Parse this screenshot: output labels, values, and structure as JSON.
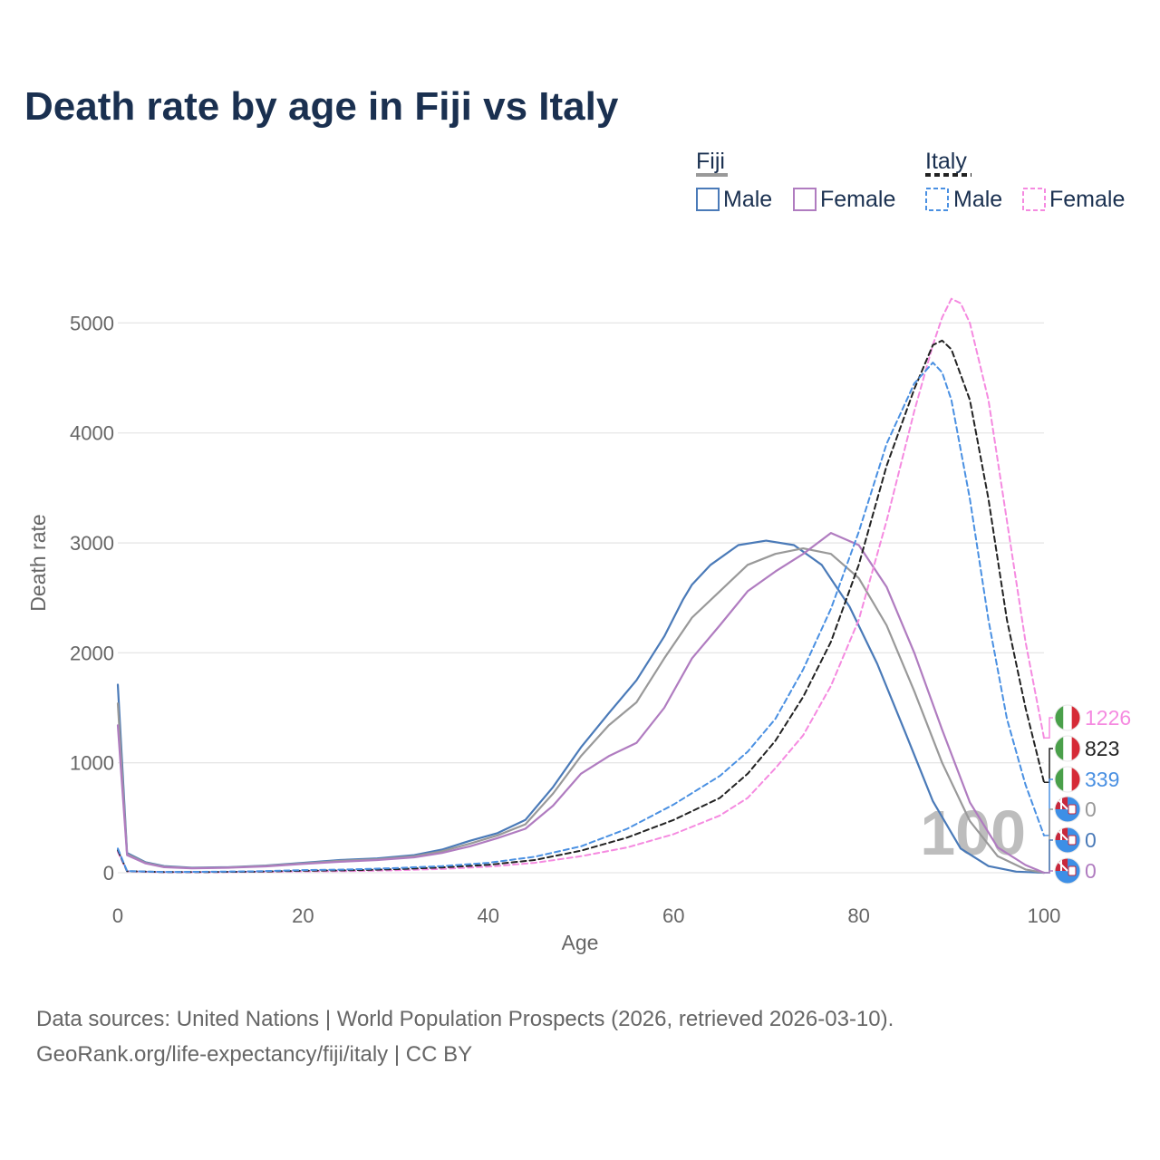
{
  "chart_data": {
    "type": "line",
    "title": "Death rate by age in Fiji vs Italy",
    "xlabel": "Age",
    "ylabel": "Death rate",
    "xlim": [
      0,
      100
    ],
    "ylim": [
      0,
      5300
    ],
    "x_ticks": [
      0,
      20,
      40,
      60,
      80,
      100
    ],
    "y_ticks": [
      0,
      1000,
      2000,
      3000,
      4000,
      5000
    ],
    "current_year_label": "100",
    "legend": {
      "groups": [
        {
          "name": "Fiji",
          "items": [
            {
              "label": "Male",
              "style": "solid",
              "color": "#4a7ab8"
            },
            {
              "label": "Female",
              "style": "solid",
              "color": "#b07cc0"
            }
          ]
        },
        {
          "name": "Italy",
          "items": [
            {
              "label": "Male",
              "style": "dashed",
              "color": "#4a90e2"
            },
            {
              "label": "Female",
              "style": "dashed",
              "color": "#f58ae0"
            }
          ]
        }
      ]
    },
    "series": [
      {
        "name": "Fiji Male",
        "color": "#4a7ab8",
        "dash": false,
        "points": [
          [
            0,
            1710
          ],
          [
            1,
            180
          ],
          [
            3,
            95
          ],
          [
            5,
            60
          ],
          [
            8,
            45
          ],
          [
            12,
            50
          ],
          [
            16,
            65
          ],
          [
            20,
            90
          ],
          [
            24,
            115
          ],
          [
            28,
            130
          ],
          [
            32,
            160
          ],
          [
            35,
            210
          ],
          [
            38,
            290
          ],
          [
            41,
            360
          ],
          [
            44,
            480
          ],
          [
            47,
            780
          ],
          [
            50,
            1140
          ],
          [
            53,
            1450
          ],
          [
            56,
            1750
          ],
          [
            59,
            2150
          ],
          [
            61,
            2480
          ],
          [
            62,
            2620
          ],
          [
            64,
            2800
          ],
          [
            67,
            2980
          ],
          [
            70,
            3020
          ],
          [
            73,
            2980
          ],
          [
            76,
            2800
          ],
          [
            79,
            2420
          ],
          [
            82,
            1900
          ],
          [
            85,
            1280
          ],
          [
            88,
            650
          ],
          [
            91,
            220
          ],
          [
            94,
            60
          ],
          [
            97,
            10
          ],
          [
            100,
            0
          ]
        ]
      },
      {
        "name": "Fiji Total",
        "color": "#999999",
        "dash": false,
        "points": [
          [
            0,
            1540
          ],
          [
            1,
            170
          ],
          [
            3,
            90
          ],
          [
            5,
            55
          ],
          [
            8,
            42
          ],
          [
            12,
            48
          ],
          [
            16,
            62
          ],
          [
            20,
            85
          ],
          [
            24,
            108
          ],
          [
            28,
            122
          ],
          [
            32,
            150
          ],
          [
            35,
            195
          ],
          [
            38,
            265
          ],
          [
            41,
            340
          ],
          [
            44,
            440
          ],
          [
            47,
            720
          ],
          [
            50,
            1060
          ],
          [
            53,
            1340
          ],
          [
            56,
            1550
          ],
          [
            59,
            1950
          ],
          [
            62,
            2320
          ],
          [
            65,
            2560
          ],
          [
            68,
            2800
          ],
          [
            71,
            2900
          ],
          [
            74,
            2950
          ],
          [
            77,
            2900
          ],
          [
            80,
            2680
          ],
          [
            83,
            2250
          ],
          [
            86,
            1650
          ],
          [
            89,
            1000
          ],
          [
            92,
            470
          ],
          [
            95,
            150
          ],
          [
            98,
            30
          ],
          [
            100,
            0
          ]
        ]
      },
      {
        "name": "Fiji Female",
        "color": "#b07cc0",
        "dash": false,
        "points": [
          [
            0,
            1340
          ],
          [
            1,
            160
          ],
          [
            3,
            85
          ],
          [
            5,
            50
          ],
          [
            8,
            40
          ],
          [
            12,
            45
          ],
          [
            16,
            58
          ],
          [
            20,
            80
          ],
          [
            24,
            100
          ],
          [
            28,
            115
          ],
          [
            32,
            140
          ],
          [
            35,
            180
          ],
          [
            38,
            240
          ],
          [
            41,
            315
          ],
          [
            44,
            400
          ],
          [
            47,
            610
          ],
          [
            50,
            900
          ],
          [
            53,
            1060
          ],
          [
            56,
            1180
          ],
          [
            59,
            1500
          ],
          [
            62,
            1950
          ],
          [
            65,
            2250
          ],
          [
            68,
            2560
          ],
          [
            71,
            2740
          ],
          [
            74,
            2900
          ],
          [
            77,
            3090
          ],
          [
            80,
            2980
          ],
          [
            83,
            2600
          ],
          [
            86,
            2000
          ],
          [
            89,
            1300
          ],
          [
            92,
            640
          ],
          [
            95,
            230
          ],
          [
            98,
            70
          ],
          [
            100,
            0
          ]
        ]
      },
      {
        "name": "Italy Female",
        "color": "#f58ae0",
        "dash": true,
        "points": [
          [
            0,
            190
          ],
          [
            1,
            12
          ],
          [
            5,
            5
          ],
          [
            10,
            5
          ],
          [
            15,
            8
          ],
          [
            20,
            12
          ],
          [
            25,
            15
          ],
          [
            30,
            22
          ],
          [
            35,
            35
          ],
          [
            40,
            55
          ],
          [
            45,
            90
          ],
          [
            50,
            150
          ],
          [
            55,
            230
          ],
          [
            60,
            350
          ],
          [
            65,
            520
          ],
          [
            68,
            680
          ],
          [
            71,
            950
          ],
          [
            74,
            1250
          ],
          [
            77,
            1700
          ],
          [
            80,
            2300
          ],
          [
            83,
            3200
          ],
          [
            86,
            4200
          ],
          [
            88,
            4800
          ],
          [
            89,
            5050
          ],
          [
            90,
            5220
          ],
          [
            91,
            5180
          ],
          [
            92,
            5000
          ],
          [
            94,
            4300
          ],
          [
            96,
            3200
          ],
          [
            98,
            2100
          ],
          [
            100,
            1226
          ]
        ]
      },
      {
        "name": "Italy Total",
        "color": "#222222",
        "dash": true,
        "points": [
          [
            0,
            205
          ],
          [
            1,
            14
          ],
          [
            5,
            6
          ],
          [
            10,
            7
          ],
          [
            15,
            10
          ],
          [
            20,
            18
          ],
          [
            25,
            22
          ],
          [
            30,
            32
          ],
          [
            35,
            48
          ],
          [
            40,
            72
          ],
          [
            45,
            115
          ],
          [
            50,
            200
          ],
          [
            55,
            320
          ],
          [
            60,
            480
          ],
          [
            65,
            680
          ],
          [
            68,
            900
          ],
          [
            71,
            1200
          ],
          [
            74,
            1600
          ],
          [
            77,
            2100
          ],
          [
            80,
            2800
          ],
          [
            83,
            3700
          ],
          [
            86,
            4400
          ],
          [
            88,
            4800
          ],
          [
            89,
            4840
          ],
          [
            90,
            4760
          ],
          [
            92,
            4300
          ],
          [
            94,
            3400
          ],
          [
            96,
            2300
          ],
          [
            98,
            1500
          ],
          [
            100,
            823
          ]
        ]
      },
      {
        "name": "Italy Male",
        "color": "#4a90e2",
        "dash": true,
        "points": [
          [
            0,
            220
          ],
          [
            1,
            15
          ],
          [
            5,
            7
          ],
          [
            10,
            9
          ],
          [
            15,
            13
          ],
          [
            20,
            24
          ],
          [
            25,
            30
          ],
          [
            30,
            42
          ],
          [
            35,
            60
          ],
          [
            40,
            90
          ],
          [
            45,
            145
          ],
          [
            50,
            240
          ],
          [
            55,
            400
          ],
          [
            60,
            620
          ],
          [
            65,
            880
          ],
          [
            68,
            1100
          ],
          [
            71,
            1400
          ],
          [
            74,
            1850
          ],
          [
            77,
            2400
          ],
          [
            80,
            3100
          ],
          [
            83,
            3900
          ],
          [
            86,
            4450
          ],
          [
            88,
            4640
          ],
          [
            89,
            4550
          ],
          [
            90,
            4300
          ],
          [
            92,
            3400
          ],
          [
            94,
            2300
          ],
          [
            96,
            1400
          ],
          [
            98,
            800
          ],
          [
            100,
            339
          ]
        ]
      }
    ],
    "end_labels": [
      {
        "value": "1226",
        "color": "#f58ae0",
        "flag": "italy"
      },
      {
        "value": "823",
        "color": "#222222",
        "flag": "italy"
      },
      {
        "value": "339",
        "color": "#4a90e2",
        "flag": "italy"
      },
      {
        "value": "0",
        "color": "#999999",
        "flag": "fiji"
      },
      {
        "value": "0",
        "color": "#4a7ab8",
        "flag": "fiji"
      },
      {
        "value": "0",
        "color": "#b07cc0",
        "flag": "fiji"
      }
    ]
  },
  "source": {
    "line1": "Data sources: United Nations | World Population Prospects (2026, retrieved 2026-03-10).",
    "line2": "GeoRank.org/life-expectancy/fiji/italy | CC BY"
  }
}
